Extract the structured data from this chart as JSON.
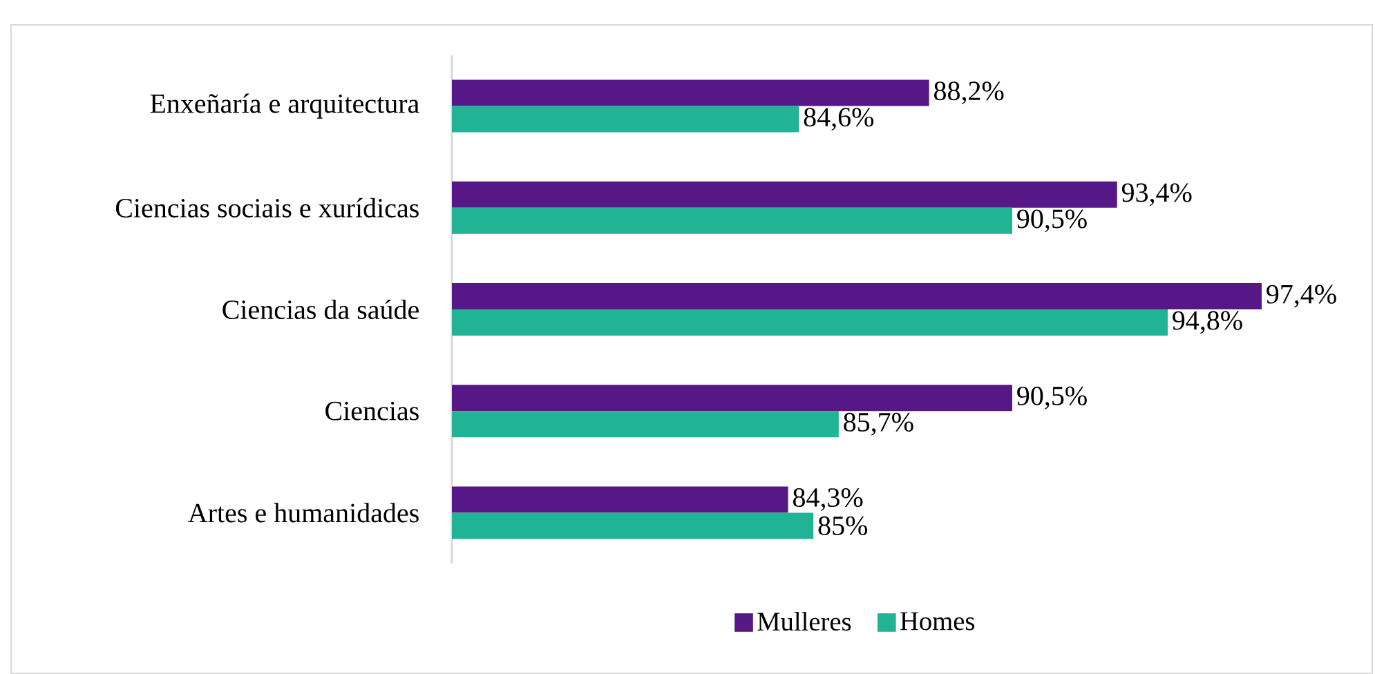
{
  "chart_data": {
    "type": "bar",
    "orientation": "horizontal",
    "categories": [
      "Enxeñaría e arquitectura",
      "Ciencias sociais e xurídicas",
      "Ciencias da saúde",
      "Ciencias",
      "Artes e humanidades"
    ],
    "series": [
      {
        "name": "Mulleres",
        "color": "#561886",
        "values": [
          88.2,
          93.4,
          97.4,
          90.5,
          84.3
        ],
        "value_labels": [
          "88,2%",
          "93,4%",
          "97,4%",
          "90,5%",
          "84,3%"
        ]
      },
      {
        "name": "Homes",
        "color": "#20b394",
        "values": [
          84.6,
          90.5,
          94.8,
          85.7,
          85
        ],
        "value_labels": [
          "84,6%",
          "90,5%",
          "94,8%",
          "85,7%",
          "85%"
        ]
      }
    ],
    "xlim": [
      75,
      97.4
    ],
    "tick_labels": "y",
    "legend": "bottom",
    "grid": false
  }
}
